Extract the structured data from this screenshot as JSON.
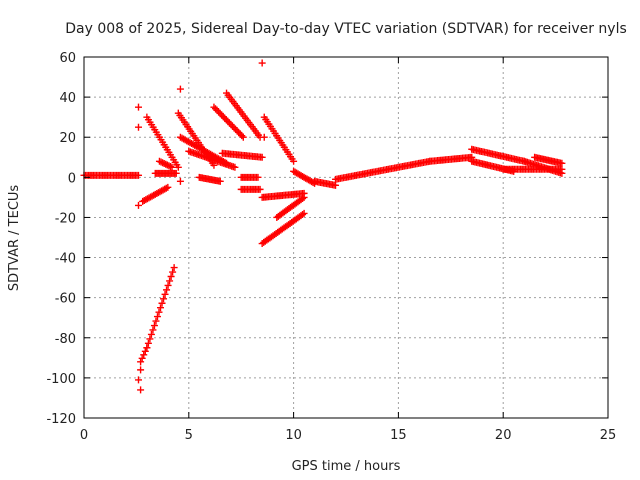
{
  "chart_data": {
    "type": "scatter",
    "title": "Day 008 of 2025, Sidereal Day-to-day VTEC variation (SDTVAR) for receiver nyls",
    "xlabel": "GPS time / hours",
    "ylabel": "SDTVAR / TECUs",
    "xlim": [
      0,
      25
    ],
    "ylim": [
      -120,
      60
    ],
    "xticks": [
      0,
      5,
      10,
      15,
      20,
      25
    ],
    "yticks": [
      -120,
      -100,
      -80,
      -60,
      -40,
      -20,
      0,
      20,
      40,
      60
    ],
    "grid": true,
    "marker": "+",
    "color": "#ff0000",
    "segments": [
      {
        "x": [
          0.0,
          2.6
        ],
        "y": [
          1,
          1
        ]
      },
      {
        "x": [
          2.7,
          3.0
        ],
        "y": [
          -92,
          -85
        ]
      },
      {
        "x": [
          3.0,
          4.3
        ],
        "y": [
          -85,
          -45
        ]
      },
      {
        "x": [
          2.8,
          4.0
        ],
        "y": [
          -12,
          -5
        ]
      },
      {
        "x": [
          3.0,
          4.5
        ],
        "y": [
          30,
          5
        ]
      },
      {
        "x": [
          4.5,
          6.2
        ],
        "y": [
          32,
          6
        ]
      },
      {
        "x": [
          4.6,
          6.8
        ],
        "y": [
          20,
          7
        ]
      },
      {
        "x": [
          5.0,
          7.2
        ],
        "y": [
          13,
          5
        ]
      },
      {
        "x": [
          6.2,
          7.6
        ],
        "y": [
          35,
          20
        ]
      },
      {
        "x": [
          6.8,
          8.4
        ],
        "y": [
          42,
          20
        ]
      },
      {
        "x": [
          6.6,
          8.5
        ],
        "y": [
          12,
          10
        ]
      },
      {
        "x": [
          8.6,
          10.0
        ],
        "y": [
          30,
          8
        ]
      },
      {
        "x": [
          8.5,
          10.5
        ],
        "y": [
          -10,
          -8
        ]
      },
      {
        "x": [
          8.5,
          10.5
        ],
        "y": [
          -33,
          -18
        ]
      },
      {
        "x": [
          9.2,
          10.5
        ],
        "y": [
          -20,
          -10
        ]
      },
      {
        "x": [
          10.0,
          11.0
        ],
        "y": [
          3,
          -3
        ]
      },
      {
        "x": [
          11.0,
          12.0
        ],
        "y": [
          -2,
          -4
        ]
      },
      {
        "x": [
          12.0,
          16.5
        ],
        "y": [
          -1,
          8
        ]
      },
      {
        "x": [
          16.5,
          18.5
        ],
        "y": [
          8,
          10
        ]
      },
      {
        "x": [
          18.5,
          21.0
        ],
        "y": [
          14,
          8
        ]
      },
      {
        "x": [
          21.0,
          22.8
        ],
        "y": [
          8,
          2
        ]
      },
      {
        "x": [
          20.0,
          22.8
        ],
        "y": [
          4,
          4
        ]
      },
      {
        "x": [
          21.5,
          22.8
        ],
        "y": [
          10,
          7
        ]
      },
      {
        "x": [
          18.5,
          20.5
        ],
        "y": [
          8,
          3
        ]
      },
      {
        "x": [
          3.6,
          4.2
        ],
        "y": [
          8,
          5
        ]
      },
      {
        "x": [
          3.4,
          4.4
        ],
        "y": [
          2,
          2
        ]
      },
      {
        "x": [
          5.5,
          6.5
        ],
        "y": [
          0,
          -2
        ]
      },
      {
        "x": [
          7.5,
          8.3
        ],
        "y": [
          0,
          0
        ]
      },
      {
        "x": [
          7.5,
          8.4
        ],
        "y": [
          -6,
          -6
        ]
      }
    ],
    "points": [
      {
        "x": 8.5,
        "y": 57
      },
      {
        "x": 4.6,
        "y": 44
      },
      {
        "x": 2.6,
        "y": 35
      },
      {
        "x": 2.6,
        "y": 25
      },
      {
        "x": 2.7,
        "y": -96
      },
      {
        "x": 2.6,
        "y": -101
      },
      {
        "x": 2.7,
        "y": -106
      },
      {
        "x": 2.6,
        "y": -14
      },
      {
        "x": 4.6,
        "y": -2
      },
      {
        "x": 8.6,
        "y": 20
      }
    ]
  }
}
